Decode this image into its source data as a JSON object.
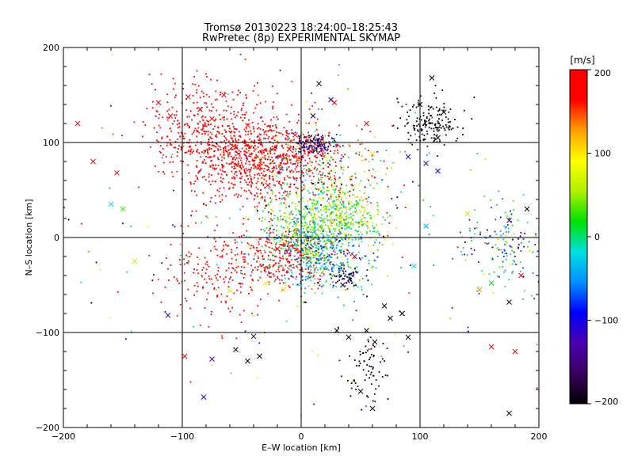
{
  "chart_data": {
    "type": "scatter",
    "title": "Tromsø 20130223 18:24:00–18:25:43",
    "subtitle": "RwPretec (8p) EXPERIMENTAL SKYMAP",
    "xlabel": "E–W location [km]",
    "ylabel": "N–S location [km]",
    "xlim": [
      -200,
      200
    ],
    "ylim": [
      -200,
      200
    ],
    "xticks": [
      -200,
      -100,
      0,
      100,
      200
    ],
    "yticks": [
      -200,
      -100,
      0,
      100,
      200
    ],
    "xtick_labels": [
      "−200",
      "−100",
      "0",
      "100",
      "200"
    ],
    "ytick_labels": [
      "−200",
      "−100",
      "0",
      "100",
      "200"
    ],
    "grid": true,
    "colorbar": {
      "label": "[m/s]",
      "range": [
        -200,
        200
      ],
      "ticks": [
        200,
        100,
        0,
        -100,
        -200
      ],
      "tick_labels": [
        "200",
        "100",
        "0",
        "−100",
        "−200"
      ],
      "colormap": [
        "#000000",
        "#3a0060",
        "#4b00b0",
        "#0000ff",
        "#0090ff",
        "#00e0e0",
        "#00e000",
        "#b0f000",
        "#ffff00",
        "#ffa000",
        "#ff0000",
        "#ff0000"
      ]
    },
    "marker_types": [
      "dot",
      "x"
    ],
    "clusters": [
      {
        "x": -35,
        "y": 85,
        "sx": 30,
        "sy": 22,
        "v": 185,
        "vs": 15,
        "n": 900
      },
      {
        "x": -85,
        "y": 115,
        "sx": 25,
        "sy": 28,
        "v": 195,
        "vs": 8,
        "n": 300
      },
      {
        "x": -15,
        "y": -20,
        "sx": 22,
        "sy": 18,
        "v": 185,
        "vs": 25,
        "n": 350
      },
      {
        "x": -70,
        "y": -40,
        "sx": 22,
        "sy": 25,
        "v": 190,
        "vs": 10,
        "n": 160
      },
      {
        "x": 10,
        "y": 10,
        "sx": 22,
        "sy": 22,
        "v": 20,
        "vs": 45,
        "n": 600
      },
      {
        "x": 20,
        "y": -25,
        "sx": 20,
        "sy": 18,
        "v": -40,
        "vs": 40,
        "n": 300
      },
      {
        "x": 40,
        "y": 25,
        "sx": 14,
        "sy": 14,
        "v": 50,
        "vs": 40,
        "n": 220
      },
      {
        "x": 12,
        "y": 98,
        "sx": 8,
        "sy": 5,
        "v": -150,
        "vs": 30,
        "n": 150
      },
      {
        "x": 20,
        "y": 70,
        "sx": 30,
        "sy": 22,
        "v": 40,
        "vs": 110,
        "n": 250
      },
      {
        "x": 110,
        "y": 120,
        "sx": 12,
        "sy": 12,
        "v": -200,
        "vs": 10,
        "n": 160
      },
      {
        "x": 55,
        "y": -140,
        "sx": 8,
        "sy": 20,
        "v": -195,
        "vs": 8,
        "n": 70
      },
      {
        "x": 40,
        "y": -40,
        "sx": 6,
        "sy": 5,
        "v": -180,
        "vs": 20,
        "n": 50
      },
      {
        "x": 170,
        "y": -10,
        "sx": 18,
        "sy": 22,
        "v": -40,
        "vs": 70,
        "n": 160
      },
      {
        "x": 0,
        "y": 0,
        "sx": 90,
        "sy": 80,
        "v": 0,
        "vs": 150,
        "n": 250
      }
    ],
    "x_markers": [
      [
        -188,
        120,
        195
      ],
      [
        -175,
        80,
        190
      ],
      [
        -160,
        35,
        -20
      ],
      [
        -150,
        30,
        30
      ],
      [
        -140,
        -25,
        60
      ],
      [
        -155,
        68,
        180
      ],
      [
        -120,
        142,
        195
      ],
      [
        -110,
        128,
        200
      ],
      [
        -95,
        148,
        195
      ],
      [
        -85,
        135,
        190
      ],
      [
        -75,
        125,
        185
      ],
      [
        -65,
        150,
        200
      ],
      [
        -55,
        95,
        195
      ],
      [
        -45,
        118,
        190
      ],
      [
        -112,
        -82,
        -120
      ],
      [
        -98,
        -125,
        195
      ],
      [
        -75,
        -128,
        -130
      ],
      [
        -82,
        -168,
        -110
      ],
      [
        -60,
        -56,
        60
      ],
      [
        -30,
        -48,
        100
      ],
      [
        -15,
        -55,
        110
      ],
      [
        -10,
        93,
        195
      ],
      [
        -28,
        55,
        190
      ],
      [
        -35,
        75,
        185
      ],
      [
        15,
        162,
        -180
      ],
      [
        25,
        145,
        -170
      ],
      [
        10,
        128,
        -175
      ],
      [
        -5,
        108,
        180
      ],
      [
        28,
        142,
        180
      ],
      [
        35,
        -50,
        -190
      ],
      [
        30,
        -98,
        -200
      ],
      [
        40,
        -105,
        -195
      ],
      [
        55,
        -98,
        -195
      ],
      [
        62,
        -110,
        -200
      ],
      [
        70,
        -72,
        -185
      ],
      [
        75,
        -85,
        -200
      ],
      [
        85,
        -80,
        -200
      ],
      [
        90,
        -105,
        -195
      ],
      [
        60,
        -180,
        -195
      ],
      [
        50,
        -162,
        -195
      ],
      [
        -35,
        -125,
        -190
      ],
      [
        -45,
        -130,
        -200
      ],
      [
        -55,
        -118,
        -190
      ],
      [
        -40,
        -104,
        -180
      ],
      [
        100,
        140,
        -200
      ],
      [
        110,
        168,
        -200
      ],
      [
        120,
        132,
        -195
      ],
      [
        115,
        105,
        -195
      ],
      [
        105,
        78,
        -110
      ],
      [
        115,
        70,
        -100
      ],
      [
        95,
        -30,
        -20
      ],
      [
        105,
        12,
        -40
      ],
      [
        140,
        25,
        60
      ],
      [
        160,
        -48,
        10
      ],
      [
        150,
        -55,
        130
      ],
      [
        175,
        18,
        -150
      ],
      [
        190,
        30,
        -200
      ],
      [
        185,
        -40,
        190
      ],
      [
        175,
        -68,
        -190
      ],
      [
        180,
        -120,
        170
      ],
      [
        160,
        -115,
        200
      ],
      [
        175,
        -185,
        -195
      ],
      [
        55,
        120,
        195
      ],
      [
        45,
        -20,
        195
      ],
      [
        90,
        85,
        -110
      ],
      [
        -5,
        5,
        30
      ],
      [
        5,
        -15,
        100
      ],
      [
        -20,
        -12,
        190
      ],
      [
        20,
        30,
        80
      ],
      [
        60,
        88,
        100
      ]
    ]
  }
}
